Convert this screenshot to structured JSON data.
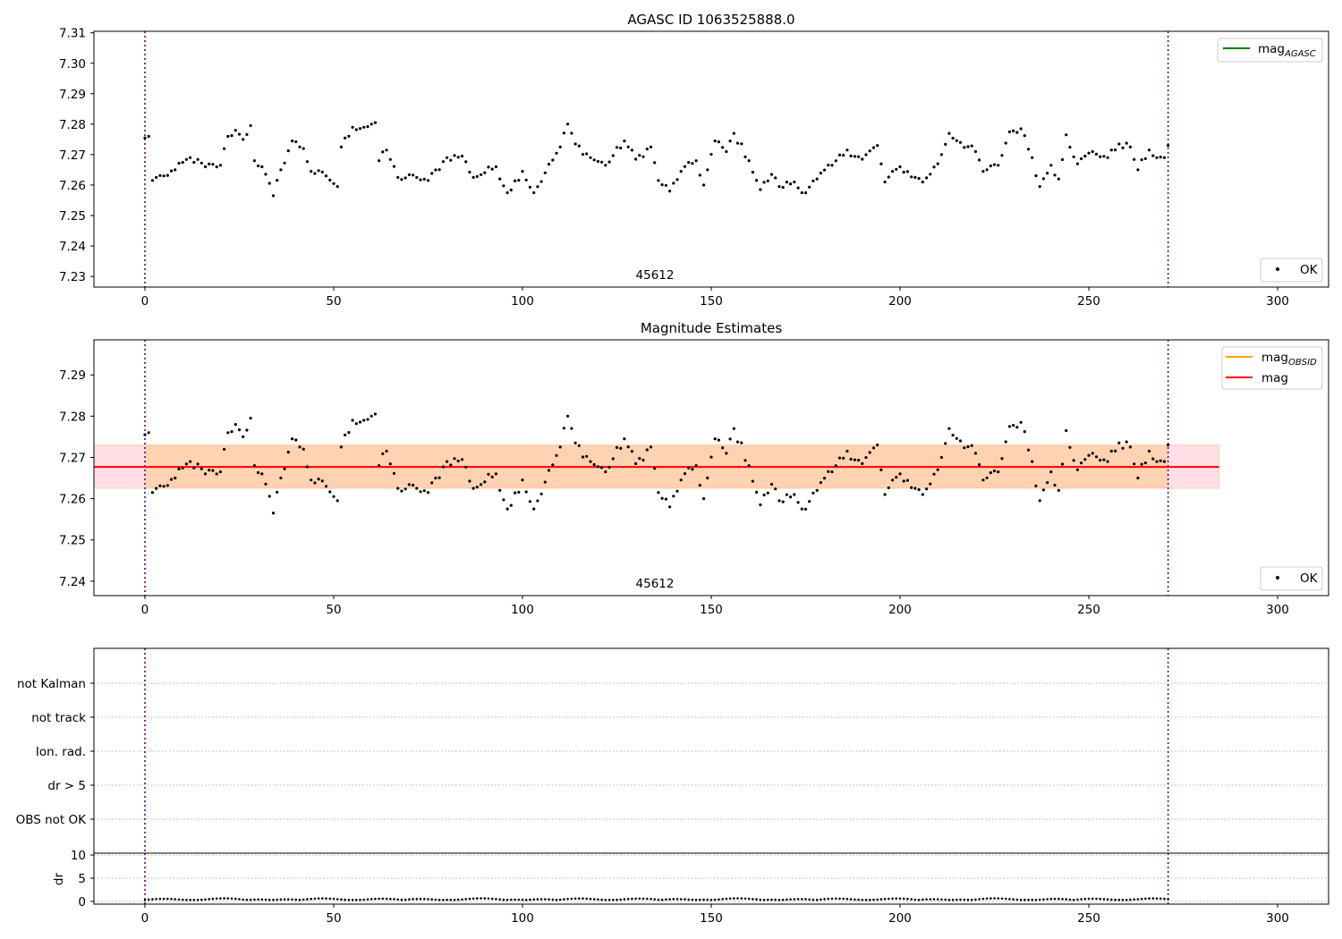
{
  "chart_data": [
    {
      "type": "scatter",
      "title": "AGASC ID 1063525888.0",
      "annotation": "45612",
      "xlim": [
        -13.5,
        313.5
      ],
      "ylim": [
        7.2265,
        7.3105
      ],
      "xticks": [
        0,
        50,
        100,
        150,
        200,
        250,
        300
      ],
      "yticks": [
        7.23,
        7.24,
        7.25,
        7.26,
        7.27,
        7.28,
        7.29,
        7.3,
        7.31
      ],
      "ytick_labels": [
        "7.23",
        "7.24",
        "7.25",
        "7.26",
        "7.27",
        "7.28",
        "7.29",
        "7.30",
        "7.31"
      ],
      "vlines": [
        0,
        271
      ],
      "legend_lines": [
        {
          "name": "mag",
          "sub": "AGASC",
          "color": "#008000"
        }
      ],
      "legend_points": [
        {
          "name": "OK",
          "color": "#000000"
        }
      ]
    },
    {
      "type": "scatter",
      "title": "Magnitude Estimates",
      "annotation": "45612",
      "xlim": [
        -13.5,
        313.5
      ],
      "ylim": [
        7.2365,
        7.2985
      ],
      "xticks": [
        0,
        50,
        100,
        150,
        200,
        250,
        300
      ],
      "yticks": [
        7.24,
        7.25,
        7.26,
        7.27,
        7.28,
        7.29
      ],
      "ytick_labels": [
        "7.24",
        "7.25",
        "7.26",
        "7.27",
        "7.28",
        "7.29"
      ],
      "vlines": [
        0,
        271
      ],
      "mag": 7.2677,
      "band": [
        -13.5,
        284.5,
        7.2625,
        7.273
      ],
      "obsid_band": [
        0,
        271,
        7.2625,
        7.273
      ],
      "legend_lines": [
        {
          "name": "mag",
          "sub": "OBSID",
          "color": "#ffa500"
        },
        {
          "name": "mag",
          "sub": "",
          "color": "#ff0000"
        }
      ],
      "legend_points": [
        {
          "name": "OK",
          "color": "#000000"
        }
      ]
    },
    {
      "type": "scatter",
      "title": "",
      "categories": [
        "OBS not OK",
        "dr > 5",
        "Ion. rad.",
        "not track",
        "not Kalman"
      ],
      "xlim": [
        -13.5,
        313.5
      ],
      "vlines": [
        0,
        271
      ],
      "points": []
    },
    {
      "type": "scatter",
      "title": "",
      "ylabel": "dr",
      "xlim": [
        -13.5,
        313.5
      ],
      "ylim": [
        -0.6,
        10.4
      ],
      "xticks": [
        0,
        50,
        100,
        150,
        200,
        250,
        300
      ],
      "yticks": [
        0,
        5,
        10
      ],
      "vlines": [
        0,
        271
      ],
      "dr_base": 0.3,
      "dr_amp": 0.35
    }
  ],
  "magnitudes": {
    "n": 272,
    "anchors": [
      [
        0,
        7.2755
      ],
      [
        1,
        7.276
      ],
      [
        2,
        7.2615
      ],
      [
        3,
        7.2625
      ],
      [
        5,
        7.263
      ],
      [
        8,
        7.265
      ],
      [
        12,
        7.269
      ],
      [
        16,
        7.266
      ],
      [
        20,
        7.2665
      ],
      [
        22,
        7.276
      ],
      [
        24,
        7.278
      ],
      [
        26,
        7.275
      ],
      [
        28,
        7.2795
      ],
      [
        29,
        7.268
      ],
      [
        31,
        7.266
      ],
      [
        34,
        7.2565
      ],
      [
        36,
        7.265
      ],
      [
        39,
        7.2745
      ],
      [
        42,
        7.272
      ],
      [
        44,
        7.2645
      ],
      [
        48,
        7.263
      ],
      [
        51,
        7.2595
      ],
      [
        52,
        7.2725
      ],
      [
        55,
        7.279
      ],
      [
        58,
        7.279
      ],
      [
        61,
        7.2805
      ],
      [
        62,
        7.268
      ],
      [
        64,
        7.2715
      ],
      [
        67,
        7.2625
      ],
      [
        72,
        7.2625
      ],
      [
        75,
        7.2615
      ],
      [
        80,
        7.269
      ],
      [
        84,
        7.2695
      ],
      [
        87,
        7.2625
      ],
      [
        93,
        7.266
      ],
      [
        96,
        7.2575
      ],
      [
        100,
        7.2645
      ],
      [
        103,
        7.2575
      ],
      [
        106,
        7.264
      ],
      [
        110,
        7.2725
      ],
      [
        112,
        7.28
      ],
      [
        114,
        7.2735
      ],
      [
        118,
        7.269
      ],
      [
        122,
        7.2665
      ],
      [
        127,
        7.2745
      ],
      [
        130,
        7.2685
      ],
      [
        134,
        7.2725
      ],
      [
        136,
        7.2615
      ],
      [
        139,
        7.258
      ],
      [
        142,
        7.2645
      ],
      [
        146,
        7.268
      ],
      [
        148,
        7.26
      ],
      [
        151,
        7.2745
      ],
      [
        154,
        7.271
      ],
      [
        156,
        7.277
      ],
      [
        160,
        7.268
      ],
      [
        163,
        7.2585
      ],
      [
        166,
        7.2635
      ],
      [
        168,
        7.2595
      ],
      [
        172,
        7.261
      ],
      [
        174,
        7.2575
      ],
      [
        178,
        7.262
      ],
      [
        182,
        7.2665
      ],
      [
        186,
        7.2715
      ],
      [
        190,
        7.2685
      ],
      [
        194,
        7.273
      ],
      [
        196,
        7.261
      ],
      [
        200,
        7.266
      ],
      [
        204,
        7.2625
      ],
      [
        206,
        7.261
      ],
      [
        210,
        7.267
      ],
      [
        213,
        7.277
      ],
      [
        216,
        7.274
      ],
      [
        220,
        7.271
      ],
      [
        222,
        7.2645
      ],
      [
        226,
        7.2665
      ],
      [
        229,
        7.2775
      ],
      [
        232,
        7.2785
      ],
      [
        235,
        7.269
      ],
      [
        237,
        7.2595
      ],
      [
        240,
        7.2665
      ],
      [
        242,
        7.262
      ],
      [
        244,
        7.2765
      ],
      [
        247,
        7.267
      ],
      [
        251,
        7.271
      ],
      [
        255,
        7.269
      ],
      [
        258,
        7.2735
      ],
      [
        261,
        7.2725
      ],
      [
        263,
        7.265
      ],
      [
        266,
        7.2715
      ],
      [
        268,
        7.269
      ],
      [
        270,
        7.269
      ],
      [
        271,
        7.273
      ]
    ],
    "jitter": 0.0024
  }
}
